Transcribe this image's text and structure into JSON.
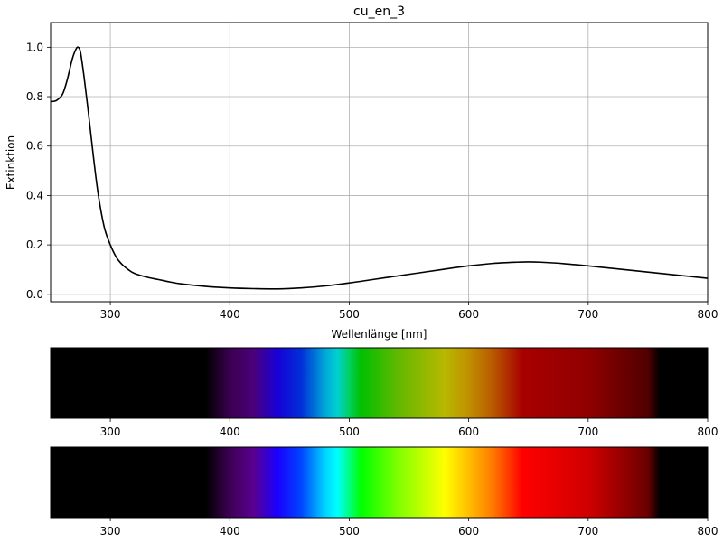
{
  "chart_data": [
    {
      "type": "line",
      "title": "cu_en_3",
      "xlabel": "Wellenlänge [nm]",
      "ylabel": "Extinktion",
      "xlim": [
        250,
        800
      ],
      "ylim": [
        -0.03,
        1.1
      ],
      "grid": true,
      "xticks": [
        300,
        400,
        500,
        600,
        700,
        800
      ],
      "yticks": [
        0.0,
        0.2,
        0.4,
        0.6,
        0.8,
        1.0
      ],
      "ytick_labels": [
        "0.0",
        "0.2",
        "0.4",
        "0.6",
        "0.8",
        "1.0"
      ],
      "line_color": "#000000",
      "series": [
        {
          "x": [
            250,
            255,
            260,
            264,
            268,
            271,
            273,
            275,
            278,
            282,
            286,
            290,
            295,
            300,
            305,
            310,
            315,
            320,
            330,
            340,
            350,
            360,
            380,
            400,
            420,
            440,
            460,
            480,
            500,
            520,
            540,
            560,
            580,
            600,
            620,
            640,
            650,
            660,
            680,
            700,
            720,
            740,
            760,
            780,
            800
          ],
          "y": [
            0.78,
            0.785,
            0.81,
            0.87,
            0.95,
            0.99,
            1.0,
            0.98,
            0.88,
            0.72,
            0.55,
            0.4,
            0.27,
            0.2,
            0.15,
            0.12,
            0.1,
            0.085,
            0.07,
            0.06,
            0.05,
            0.042,
            0.032,
            0.026,
            0.023,
            0.022,
            0.026,
            0.034,
            0.046,
            0.06,
            0.074,
            0.088,
            0.102,
            0.115,
            0.125,
            0.13,
            0.131,
            0.13,
            0.124,
            0.115,
            0.105,
            0.095,
            0.085,
            0.075,
            0.065
          ]
        }
      ]
    },
    {
      "type": "heatmap",
      "xlim": [
        250,
        800
      ],
      "xticks": [
        300,
        400,
        500,
        600,
        700,
        800
      ],
      "spectrum_x": [
        250,
        380,
        400,
        420,
        440,
        460,
        480,
        490,
        500,
        510,
        540,
        580,
        600,
        620,
        645,
        700,
        750,
        760,
        800
      ],
      "spectrum_colors": [
        "#000000",
        "#000000",
        "#3a0050",
        "#4b007a",
        "#1800d8",
        "#0030d8",
        "#00a8d8",
        "#00d0d0",
        "#00d060",
        "#00c000",
        "#60b800",
        "#b8b800",
        "#c09000",
        "#b85a00",
        "#a80000",
        "#900000",
        "#500000",
        "#000000",
        "#000000"
      ]
    },
    {
      "type": "heatmap",
      "xlim": [
        250,
        800
      ],
      "xticks": [
        300,
        400,
        500,
        600,
        700,
        800
      ],
      "spectrum_x": [
        250,
        380,
        400,
        420,
        440,
        460,
        480,
        490,
        500,
        510,
        540,
        580,
        600,
        620,
        645,
        700,
        750,
        760,
        800
      ],
      "spectrum_colors": [
        "#000000",
        "#000000",
        "#3e0055",
        "#5a0090",
        "#1a00ff",
        "#0046ff",
        "#00d4ff",
        "#00ffff",
        "#00ff80",
        "#00ff00",
        "#7dff00",
        "#ffff00",
        "#ffbe00",
        "#ff7a00",
        "#ff0000",
        "#d00000",
        "#6a0000",
        "#000000",
        "#000000"
      ]
    }
  ]
}
